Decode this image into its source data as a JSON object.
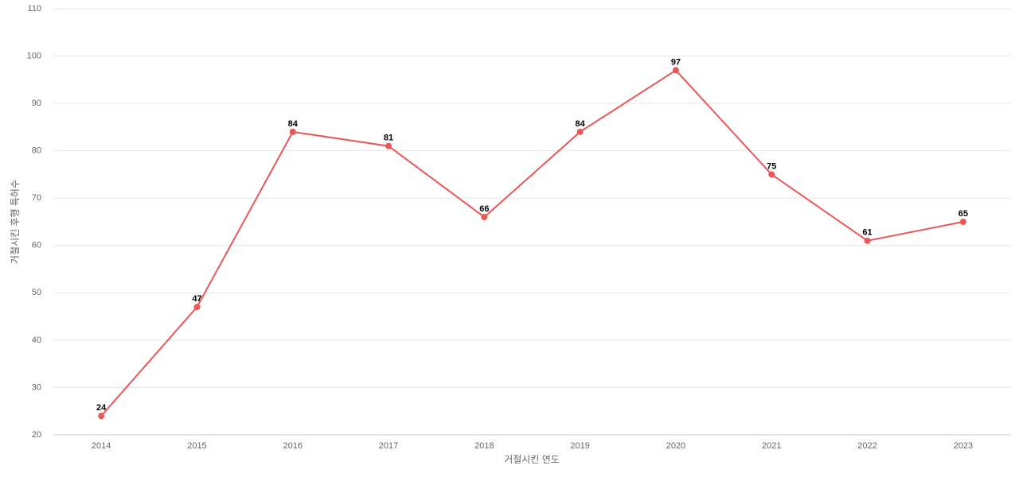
{
  "chart_data": {
    "type": "line",
    "x_label": "거절시킨 연도",
    "y_label": "거절시킨 후행 특허수",
    "categories": [
      "2014",
      "2015",
      "2016",
      "2017",
      "2018",
      "2019",
      "2020",
      "2021",
      "2022",
      "2023"
    ],
    "series": [
      {
        "color": "#eb5757",
        "values": [
          24,
          47,
          84,
          81,
          66,
          84,
          97,
          75,
          61,
          65
        ]
      }
    ],
    "ylim": [
      20,
      110
    ],
    "yticks": [
      20,
      30,
      40,
      50,
      60,
      70,
      80,
      90,
      100,
      110
    ],
    "grid": true
  }
}
